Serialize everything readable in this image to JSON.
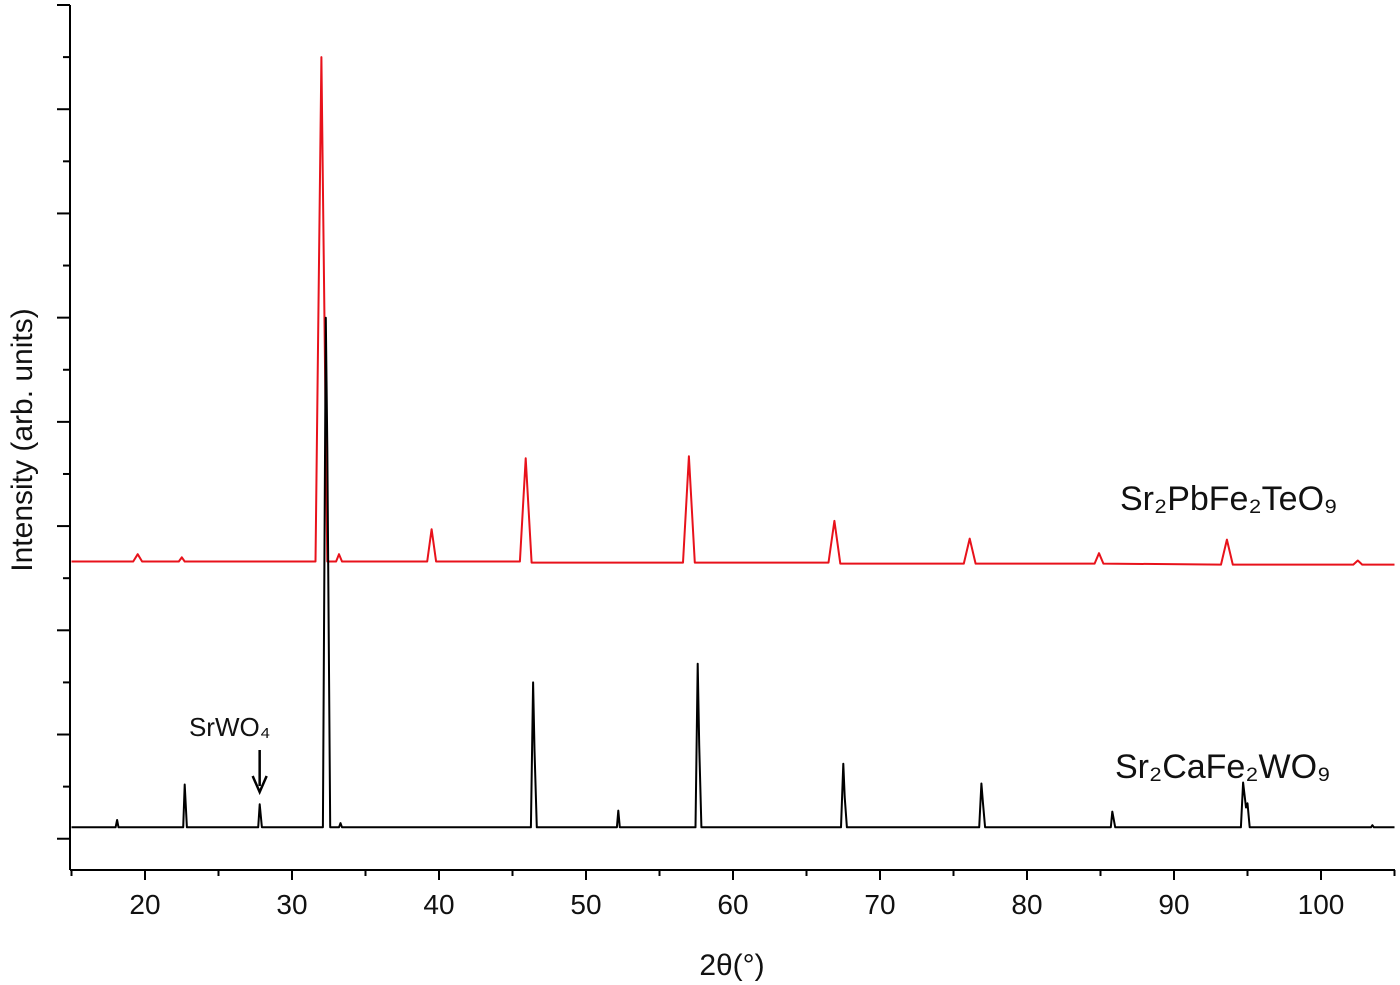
{
  "chart_data": {
    "type": "line",
    "x_label": "2θ(°)",
    "y_label": "Intensity (arb. units)",
    "xlim": [
      15,
      105
    ],
    "xticks": [
      20,
      30,
      40,
      50,
      60,
      70,
      80,
      90,
      100
    ],
    "xminorticks": [
      15,
      25,
      35,
      45,
      55,
      65,
      75,
      85,
      95,
      105
    ],
    "ylim": [
      -0.3,
      8
    ],
    "yticks": [
      0,
      1,
      2,
      3,
      4,
      5,
      6,
      7,
      8
    ],
    "yminorticks": [
      0.5,
      1.5,
      2.5,
      3.5,
      4.5,
      5.5,
      6.5,
      7.5
    ],
    "series": [
      {
        "name": "Sr₂PbFe₂TeO₉",
        "color": "#e8121b",
        "x": [
          15,
          19.2,
          19.5,
          19.8,
          22.3,
          22.5,
          22.7,
          31.6,
          32.0,
          32.4,
          33.0,
          33.2,
          33.4,
          39.2,
          39.5,
          39.8,
          45.5,
          45.9,
          46.3,
          56.6,
          57.0,
          57.4,
          66.5,
          66.9,
          67.3,
          75.7,
          76.1,
          76.5,
          84.6,
          84.9,
          85.2,
          93.2,
          93.6,
          94.0,
          102.2,
          102.5,
          102.8,
          105
        ],
        "values": [
          2.66,
          2.66,
          2.73,
          2.66,
          2.66,
          2.7,
          2.66,
          2.66,
          7.5,
          2.66,
          2.66,
          2.73,
          2.66,
          2.66,
          2.97,
          2.66,
          2.66,
          3.65,
          2.65,
          2.65,
          3.67,
          2.65,
          2.65,
          3.05,
          2.64,
          2.64,
          2.88,
          2.64,
          2.64,
          2.74,
          2.64,
          2.63,
          2.87,
          2.63,
          2.63,
          2.67,
          2.63,
          2.63
        ]
      },
      {
        "name": "Sr₂CaFe₂WO₉",
        "color": "#000000",
        "x": [
          15,
          18.0,
          18.1,
          18.2,
          22.6,
          22.7,
          22.85,
          27.7,
          27.8,
          27.95,
          32.1,
          32.3,
          32.4,
          32.6,
          33.2,
          33.3,
          33.4,
          46.25,
          46.4,
          46.5,
          46.65,
          52.1,
          52.2,
          52.3,
          57.45,
          57.6,
          57.7,
          57.85,
          67.35,
          67.5,
          67.6,
          67.75,
          76.75,
          76.9,
          77.0,
          77.15,
          85.7,
          85.8,
          86.0,
          94.55,
          94.7,
          94.9,
          95.0,
          95.15,
          103.4,
          103.5,
          103.6,
          105
        ],
        "values": [
          0.11,
          0.11,
          0.18,
          0.11,
          0.11,
          0.52,
          0.11,
          0.11,
          0.33,
          0.11,
          0.11,
          5.0,
          3.75,
          0.11,
          0.11,
          0.15,
          0.11,
          0.11,
          1.5,
          0.85,
          0.11,
          0.11,
          0.27,
          0.11,
          0.11,
          1.68,
          0.9,
          0.11,
          0.11,
          0.72,
          0.4,
          0.11,
          0.11,
          0.53,
          0.35,
          0.11,
          0.11,
          0.26,
          0.11,
          0.11,
          0.54,
          0.3,
          0.34,
          0.11,
          0.11,
          0.13,
          0.11,
          0.11
        ]
      }
    ],
    "annotations": [
      {
        "text": "SrWO₄",
        "x": 27.8
      }
    ]
  }
}
